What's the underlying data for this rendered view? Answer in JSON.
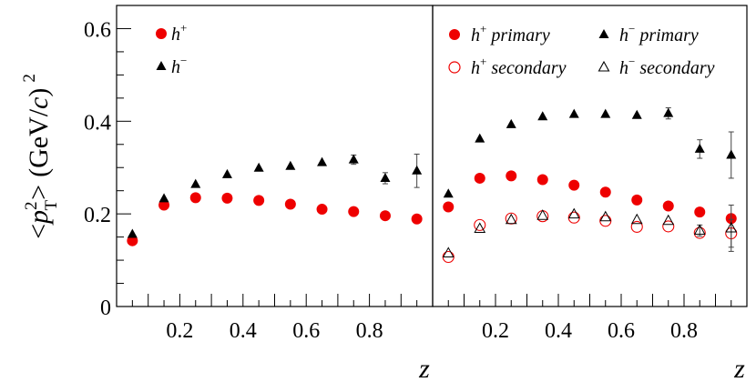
{
  "chart_data": [
    {
      "type": "scatter",
      "panel": "left",
      "ylabel": "<p_T^2> (GeV/c)^2",
      "ylabel_parts": {
        "open": "<",
        "p": "p",
        "sup": "2",
        "sub": "T",
        "close": ">",
        "unit": "(GeV/",
        "unit_c": "c",
        "unit_close": ")",
        "unit_sup": "2"
      },
      "xlabel": "z",
      "xlim": [
        0,
        1
      ],
      "ylim": [
        0,
        0.65
      ],
      "yticks": [
        "0",
        "0.2",
        "0.4",
        "0.6"
      ],
      "ytick_values": [
        0,
        0.2,
        0.4,
        0.6
      ],
      "xticks": [
        "0.2",
        "0.4",
        "0.6",
        "0.8"
      ],
      "xtick_values": [
        0.2,
        0.4,
        0.6,
        0.8
      ],
      "series": [
        {
          "name": "h+",
          "label_base": "h",
          "label_sup": "+",
          "marker": "circle",
          "fill": "filled",
          "color": "#ee0000",
          "x": [
            0.05,
            0.15,
            0.25,
            0.35,
            0.45,
            0.55,
            0.65,
            0.75,
            0.85,
            0.95
          ],
          "y": [
            0.142,
            0.219,
            0.235,
            0.234,
            0.229,
            0.221,
            0.21,
            0.205,
            0.196,
            0.189
          ],
          "err": [
            0,
            0,
            0,
            0,
            0,
            0,
            0,
            0,
            0,
            0
          ]
        },
        {
          "name": "h-",
          "label_base": "h",
          "label_sup": "−",
          "marker": "triangle",
          "fill": "filled",
          "color": "#000000",
          "x": [
            0.05,
            0.15,
            0.25,
            0.35,
            0.45,
            0.55,
            0.65,
            0.75,
            0.85,
            0.95
          ],
          "y": [
            0.156,
            0.233,
            0.264,
            0.285,
            0.299,
            0.303,
            0.311,
            0.317,
            0.277,
            0.293
          ],
          "err": [
            0,
            0,
            0,
            0,
            0,
            0,
            0,
            0.01,
            0.012,
            0.036
          ]
        }
      ]
    },
    {
      "type": "scatter",
      "panel": "right",
      "xlabel": "z",
      "xlim": [
        0,
        1
      ],
      "ylim": [
        0,
        0.65
      ],
      "xticks": [
        "0.2",
        "0.4",
        "0.6",
        "0.8"
      ],
      "xtick_values": [
        0.2,
        0.4,
        0.6,
        0.8
      ],
      "series": [
        {
          "name": "h+ primary",
          "label_base": "h",
          "label_sup": "+",
          "label_suffix": " primary",
          "marker": "circle",
          "fill": "filled",
          "color": "#ee0000",
          "x": [
            0.05,
            0.15,
            0.25,
            0.35,
            0.45,
            0.55,
            0.65,
            0.75,
            0.85,
            0.95
          ],
          "y": [
            0.215,
            0.277,
            0.282,
            0.274,
            0.262,
            0.247,
            0.23,
            0.217,
            0.204,
            0.19
          ],
          "err": [
            0,
            0,
            0,
            0,
            0,
            0,
            0,
            0,
            0,
            0
          ]
        },
        {
          "name": "h- primary",
          "label_base": "h",
          "label_sup": "−",
          "label_suffix": " primary",
          "marker": "triangle",
          "fill": "filled",
          "color": "#000000",
          "x": [
            0.05,
            0.15,
            0.25,
            0.35,
            0.45,
            0.55,
            0.65,
            0.75,
            0.85,
            0.95
          ],
          "y": [
            0.243,
            0.362,
            0.393,
            0.41,
            0.415,
            0.415,
            0.413,
            0.417,
            0.34,
            0.327
          ],
          "err": [
            0,
            0,
            0,
            0,
            0,
            0,
            0,
            0.012,
            0.02,
            0.05
          ]
        },
        {
          "name": "h+ secondary",
          "label_base": "h",
          "label_sup": "+",
          "label_suffix": " secondary",
          "marker": "circle",
          "fill": "open",
          "color": "#ee0000",
          "x": [
            0.05,
            0.15,
            0.25,
            0.35,
            0.45,
            0.55,
            0.65,
            0.75,
            0.85,
            0.95
          ],
          "y": [
            0.107,
            0.176,
            0.19,
            0.195,
            0.192,
            0.185,
            0.172,
            0.173,
            0.159,
            0.158
          ],
          "err": [
            0,
            0,
            0,
            0,
            0,
            0,
            0,
            0,
            0,
            0.03
          ]
        },
        {
          "name": "h- secondary",
          "label_base": "h",
          "label_sup": "−",
          "label_suffix": " secondary",
          "marker": "triangle",
          "fill": "open",
          "color": "#000000",
          "x": [
            0.05,
            0.15,
            0.25,
            0.35,
            0.45,
            0.55,
            0.65,
            0.75,
            0.85,
            0.95
          ],
          "y": [
            0.115,
            0.168,
            0.187,
            0.196,
            0.199,
            0.193,
            0.187,
            0.185,
            0.164,
            0.169
          ],
          "err": [
            0,
            0,
            0,
            0,
            0,
            0,
            0,
            0,
            0.012,
            0.05
          ]
        }
      ]
    }
  ]
}
